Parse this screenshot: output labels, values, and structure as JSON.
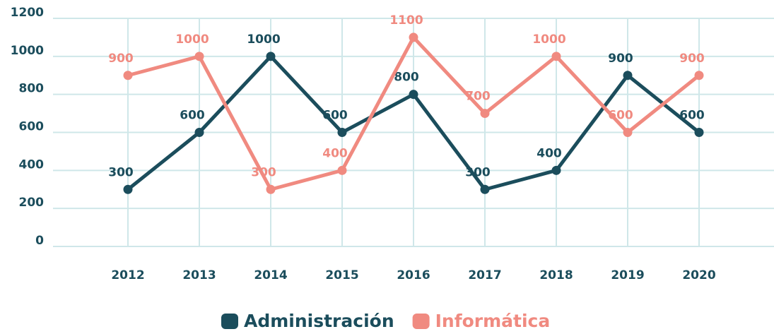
{
  "chart_data": {
    "type": "line",
    "categories": [
      "2012",
      "2013",
      "2014",
      "2015",
      "2016",
      "2017",
      "2018",
      "2019",
      "2020"
    ],
    "series": [
      {
        "name": "Administración",
        "color": "#1b4d5c",
        "values": [
          300,
          600,
          1000,
          600,
          800,
          300,
          400,
          900,
          600
        ]
      },
      {
        "name": "Informática",
        "color": "#f08a80",
        "values": [
          900,
          1000,
          300,
          400,
          1100,
          700,
          1000,
          600,
          900
        ]
      }
    ],
    "ylim": [
      0,
      1200
    ],
    "yticks": [
      0,
      200,
      400,
      600,
      800,
      1000,
      1200
    ],
    "grid": true,
    "legend": "bottom"
  }
}
